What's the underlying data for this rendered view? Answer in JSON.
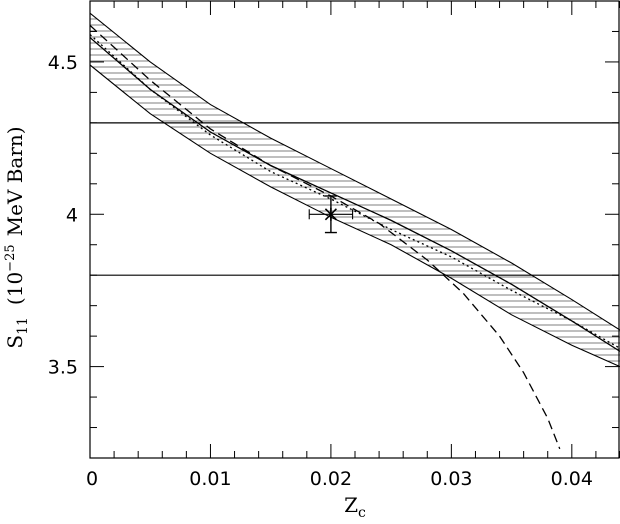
{
  "chart_data": {
    "type": "line",
    "xlabel": "Z",
    "xlabel_sub": "c",
    "ylabel_S": "S",
    "ylabel_sub": "11",
    "ylabel_rest_open": "(10",
    "ylabel_exp": "−25",
    "ylabel_rest_close": "MeV Barn)",
    "xlim": [
      0,
      0.044
    ],
    "ylim": [
      3.2,
      4.7
    ],
    "x_ticks": [
      "0",
      "0.01",
      "0.02",
      "0.03",
      "0.04"
    ],
    "x_tick_values": [
      0,
      0.01,
      0.02,
      0.03,
      0.04
    ],
    "y_ticks": [
      "3.5",
      "4",
      "4.5"
    ],
    "y_tick_values": [
      3.5,
      4.0,
      4.5
    ],
    "x_minor_step": 0.002,
    "y_minor_step": 0.1,
    "grid": false,
    "horizontal_lines": [
      4.3,
      3.8
    ],
    "band": {
      "style": "hatched",
      "x": [
        0,
        0.005,
        0.01,
        0.015,
        0.02,
        0.025,
        0.03,
        0.035,
        0.04,
        0.044
      ],
      "upper": [
        4.66,
        4.5,
        4.36,
        4.25,
        4.15,
        4.05,
        3.95,
        3.84,
        3.72,
        3.62
      ],
      "lower": [
        4.49,
        4.33,
        4.2,
        4.09,
        3.99,
        3.9,
        3.79,
        3.67,
        3.57,
        3.5
      ]
    },
    "series": [
      {
        "style": "dashed",
        "x": [
          0,
          0.005,
          0.01,
          0.015,
          0.02,
          0.024,
          0.028,
          0.031,
          0.034,
          0.036,
          0.038,
          0.039
        ],
        "values": [
          4.62,
          4.44,
          4.28,
          4.16,
          4.06,
          3.97,
          3.85,
          3.74,
          3.6,
          3.48,
          3.33,
          3.23
        ]
      },
      {
        "style": "dotted",
        "x": [
          0,
          0.005,
          0.01,
          0.015,
          0.02,
          0.025,
          0.03,
          0.035,
          0.04,
          0.044
        ],
        "values": [
          4.59,
          4.41,
          4.26,
          4.14,
          4.05,
          3.95,
          3.86,
          3.75,
          3.65,
          3.56
        ]
      },
      {
        "style": "solid",
        "x": [
          0,
          0.005,
          0.01,
          0.015,
          0.02,
          0.025,
          0.03,
          0.035,
          0.04,
          0.044
        ],
        "values": [
          4.58,
          4.41,
          4.27,
          4.16,
          4.07,
          3.98,
          3.88,
          3.77,
          3.65,
          3.55
        ]
      }
    ],
    "points": [
      {
        "marker": "asterisk",
        "x": 0.02,
        "y": 4.0,
        "yerr": [
          0.06,
          0.06
        ],
        "xerr": [
          0.0018,
          0.0018
        ]
      }
    ]
  }
}
